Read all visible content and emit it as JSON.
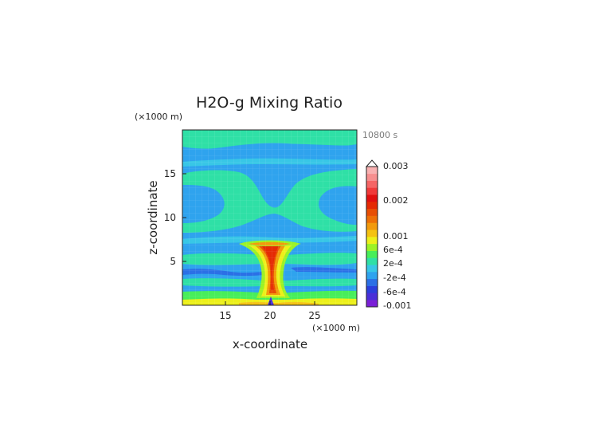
{
  "chart_data": {
    "type": "heatmap",
    "title": "H2O-g Mixing Ratio",
    "time_label": "10800 s",
    "xlabel": "x-coordinate",
    "ylabel": "z-coordinate",
    "x_unit": "(×1000 m)",
    "y_unit": "(×1000 m)",
    "xlim": [
      10.2,
      29.8
    ],
    "ylim": [
      0,
      20
    ],
    "x_ticks": [
      15,
      20,
      25
    ],
    "y_ticks": [
      5,
      10,
      15
    ],
    "grid": true,
    "colorbar": {
      "position": "right",
      "labels": [
        "0.003",
        "0.002",
        "0.001",
        "6e-4",
        "2e-4",
        "-2e-4",
        "-6e-4",
        "-0.001"
      ],
      "colors": [
        "#7a1fd6",
        "#4a2fd8",
        "#2b3fdc",
        "#2b70e6",
        "#2fa3ee",
        "#38c7e6",
        "#2fe0a6",
        "#47ee5a",
        "#9cf226",
        "#ecf01a",
        "#f4c212",
        "#f29a0c",
        "#ee7006",
        "#e84f04",
        "#e52a04",
        "#e01010",
        "#f03a3a",
        "#f56565",
        "#f78f8f",
        "#f9b1b1"
      ]
    }
  }
}
